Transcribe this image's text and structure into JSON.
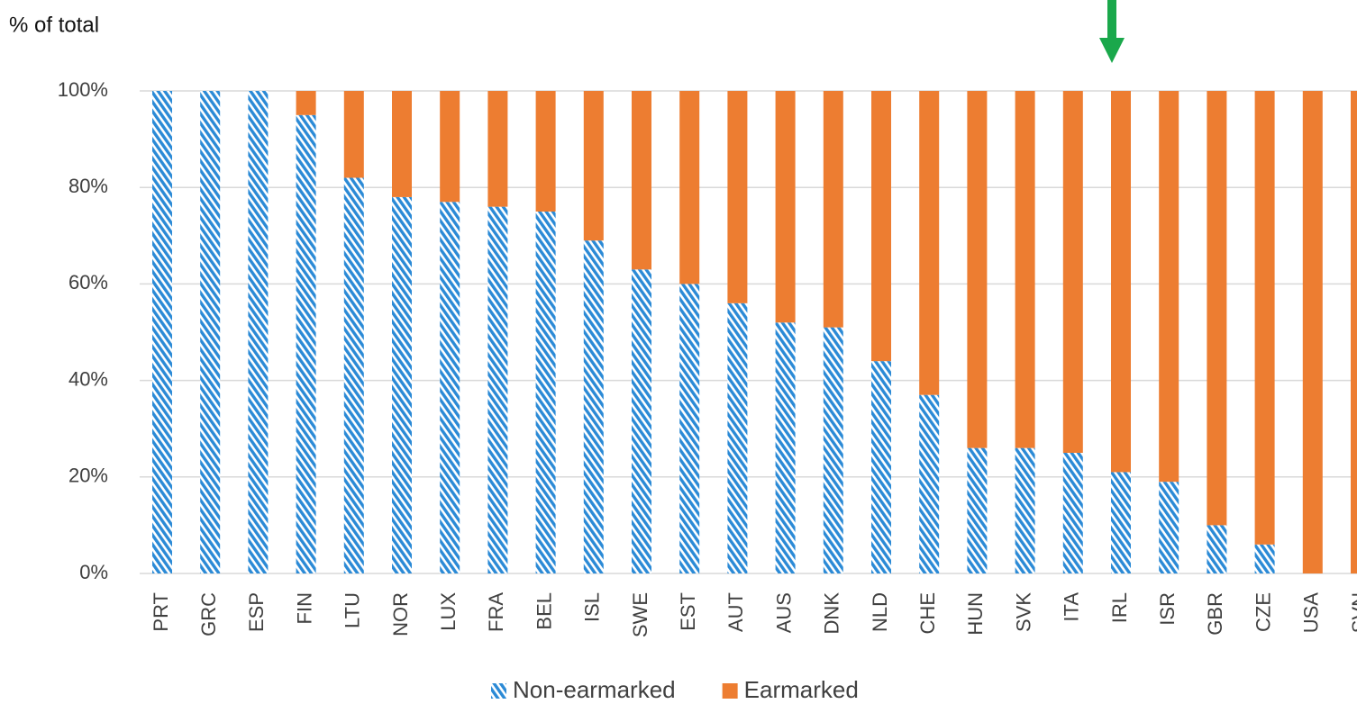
{
  "chart_data": {
    "type": "stacked_bar",
    "y_label": "% of total",
    "categories": [
      "PRT",
      "GRC",
      "ESP",
      "FIN",
      "LTU",
      "NOR",
      "LUX",
      "FRA",
      "BEL",
      "ISL",
      "SWE",
      "EST",
      "AUT",
      "AUS",
      "DNK",
      "NLD",
      "CHE",
      "HUN",
      "SVK",
      "ITA",
      "IRL",
      "ISR",
      "GBR",
      "CZE",
      "USA",
      "SVN"
    ],
    "series": [
      {
        "name": "Non-earmarked",
        "color": "#2b8ad6",
        "hatch": true,
        "values": [
          100,
          100,
          100,
          95,
          82,
          78,
          77,
          76,
          75,
          69,
          63,
          60,
          56,
          52,
          51,
          44,
          37,
          26,
          26,
          25,
          21,
          19,
          10,
          6,
          0,
          0
        ]
      },
      {
        "name": "Earmarked",
        "color": "#ed7d31",
        "hatch": false,
        "values": [
          0,
          0,
          0,
          5,
          18,
          22,
          23,
          24,
          25,
          31,
          37,
          40,
          44,
          48,
          49,
          56,
          63,
          74,
          74,
          75,
          79,
          81,
          90,
          94,
          100,
          100
        ]
      }
    ],
    "ylim": [
      0,
      100
    ],
    "yticks": [
      {
        "value": 0,
        "label": "0%"
      },
      {
        "value": 20,
        "label": "20%"
      },
      {
        "value": 40,
        "label": "40%"
      },
      {
        "value": 60,
        "label": "60%"
      },
      {
        "value": 80,
        "label": "80%"
      },
      {
        "value": 100,
        "label": "100%"
      }
    ],
    "grid": true,
    "legend": "bottom"
  }
}
